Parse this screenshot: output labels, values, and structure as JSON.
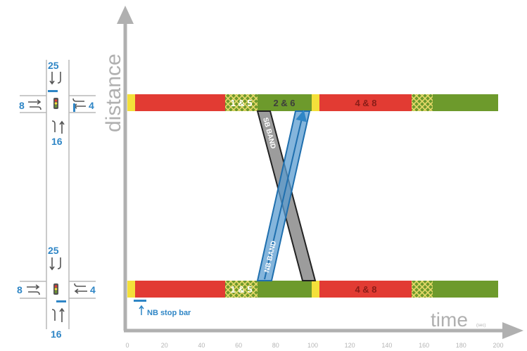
{
  "diagram": {
    "axis": {
      "y_label": "distance",
      "x_label": "time",
      "x_unit": "(sec)",
      "x_ticks": [
        "0",
        "20",
        "40",
        "60",
        "80",
        "100",
        "120",
        "140",
        "160",
        "180",
        "200"
      ]
    },
    "intersections": {
      "north": {
        "top": "25",
        "left": "8",
        "right": "4",
        "bottom": "16"
      },
      "south": {
        "top": "25",
        "left": "8",
        "right": "4",
        "bottom": "16"
      }
    },
    "phases": {
      "top": [
        "1 & 5",
        "2 & 6",
        "4 & 8"
      ],
      "bottom": [
        "1 & 5",
        "4 & 8"
      ]
    },
    "bands": {
      "sb": "SB BAND",
      "nb": "NB BAND"
    },
    "stop_bar_label": "NB stop bar",
    "colors": {
      "red": "#e23b33",
      "green": "#6d9a2c",
      "yellow": "#f4e03a",
      "blue": "#2f86c6",
      "axis": "#b0b0b0"
    }
  }
}
